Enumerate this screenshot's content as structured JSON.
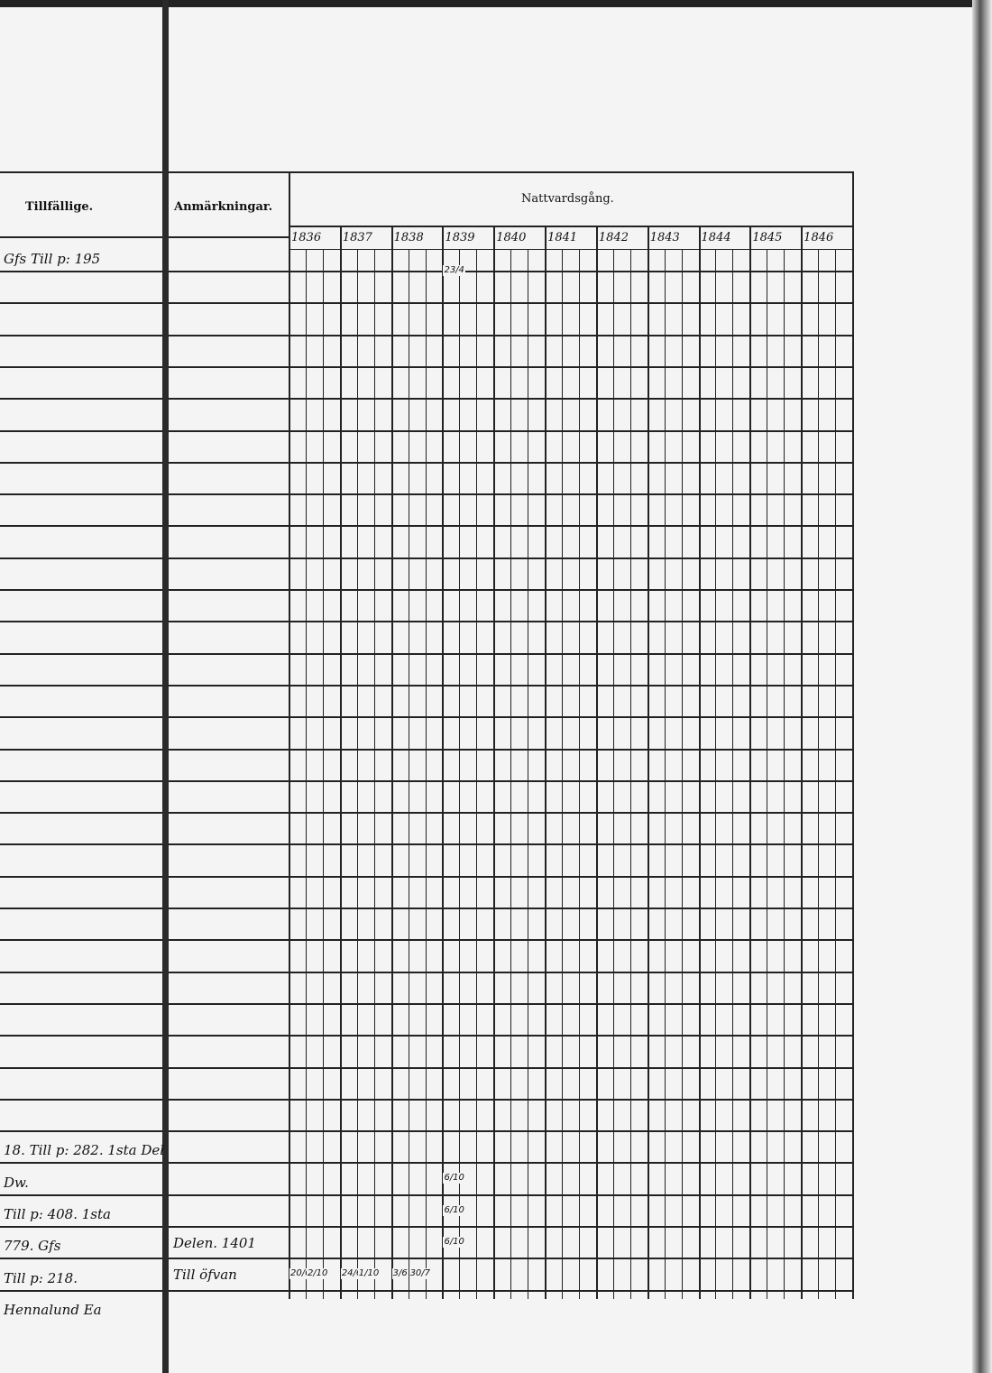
{
  "headers": {
    "tillfallige": "Tillfällige.",
    "anmarkningar": "Anmärkningar.",
    "nattvardsgang": "Nattvardsgång."
  },
  "years": [
    "1836",
    "1837",
    "1838",
    "1839",
    "1840",
    "1841",
    "1842",
    "1843",
    "1844",
    "1845",
    "1846"
  ],
  "left_entries": [
    {
      "text": "Gfs Till p: 195",
      "row": 0
    },
    {
      "text": "18. Till p: 282. 1sta Del",
      "row": 28
    },
    {
      "text": "Dw.",
      "row": 29
    },
    {
      "text": "Till p: 408. 1sta",
      "row": 30
    },
    {
      "text": "779. Gfs",
      "row": 31
    },
    {
      "text": "Till p: 218.",
      "row": 32
    },
    {
      "text": "Hennalund Ea",
      "row": 33
    }
  ],
  "remarks": [
    {
      "text": "Delen. 1401",
      "row": 30
    },
    {
      "text": "Till öfvan",
      "row": 31
    }
  ],
  "communion_marks": [
    {
      "year": "1839",
      "sub": 0,
      "row": 0,
      "value": "23/4"
    },
    {
      "year": "1839",
      "sub": 0,
      "row": 28,
      "value": "6/10"
    },
    {
      "year": "1839",
      "sub": 0,
      "row": 29,
      "value": "6/10"
    },
    {
      "year": "1839",
      "sub": 0,
      "row": 30,
      "value": "6/10"
    },
    {
      "year": "1836",
      "sub": 0,
      "row": 31,
      "value": "20/6"
    },
    {
      "year": "1836",
      "sub": 1,
      "row": 31,
      "value": "2/10"
    },
    {
      "year": "1837",
      "sub": 0,
      "row": 31,
      "value": "24/6"
    },
    {
      "year": "1837",
      "sub": 1,
      "row": 31,
      "value": "1/10"
    },
    {
      "year": "1838",
      "sub": 0,
      "row": 31,
      "value": "3/6"
    },
    {
      "year": "1838",
      "sub": 1,
      "row": 31,
      "value": "30/7"
    }
  ]
}
